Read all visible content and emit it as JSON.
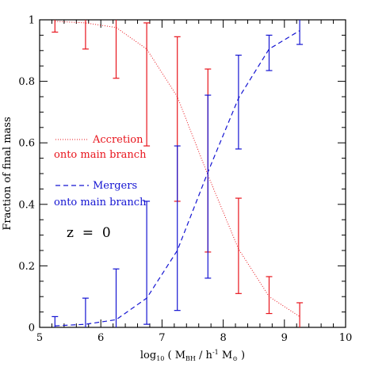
{
  "chart_data": {
    "type": "line",
    "xlabel_main": "log",
    "xlabel_sub": "10",
    "xlabel_open": " ( M",
    "xlabel_bh": "BH",
    "xlabel_mid": " / h",
    "xlabel_sup": "-1",
    "xlabel_msun": " M",
    "xlabel_sun_sym": "⊙",
    "xlabel_close": " )",
    "ylabel": "Fraction of final mass",
    "xlim": [
      5,
      10
    ],
    "ylim": [
      0,
      1
    ],
    "xticks": [
      5,
      6,
      7,
      8,
      9,
      10
    ],
    "yticks": [
      0,
      0.2,
      0.4,
      0.6,
      0.8,
      1
    ],
    "xtick_labels": [
      "5",
      "6",
      "7",
      "8",
      "9",
      "10"
    ],
    "ytick_labels": [
      "0",
      "0.2",
      "0.4",
      "0.6",
      "0.8",
      "1"
    ],
    "annotation": "z  =  0",
    "legend": [
      {
        "line1": "Accretion",
        "line2": "onto main branch",
        "color": "#e8141c",
        "style": "dotted"
      },
      {
        "line1": "Mergers",
        "line2": "onto main branch",
        "color": "#1414d2",
        "style": "dashed"
      }
    ],
    "series": [
      {
        "key": "accretion",
        "color": "#e8141c",
        "style": "dotted",
        "x": [
          5.25,
          5.75,
          6.25,
          6.75,
          7.25,
          7.75,
          8.25,
          8.75,
          9.25
        ],
        "y": [
          0.995,
          0.99,
          0.975,
          0.905,
          0.75,
          0.495,
          0.255,
          0.1,
          0.035
        ]
      },
      {
        "key": "mergers",
        "color": "#1414d2",
        "style": "dashed",
        "x": [
          5.25,
          5.75,
          6.25,
          6.75,
          7.25,
          7.75,
          8.25,
          8.75,
          9.25
        ],
        "y": [
          0.005,
          0.01,
          0.025,
          0.095,
          0.25,
          0.505,
          0.745,
          0.905,
          0.965
        ]
      }
    ],
    "errorbars": [
      {
        "series": "accretion",
        "color": "#e8141c",
        "x": 5.25,
        "low": 0.96,
        "high": 1.0
      },
      {
        "series": "accretion",
        "color": "#e8141c",
        "x": 5.75,
        "low": 0.905,
        "high": 1.0
      },
      {
        "series": "accretion",
        "color": "#e8141c",
        "x": 6.25,
        "low": 0.81,
        "high": 1.0
      },
      {
        "series": "accretion",
        "color": "#e8141c",
        "x": 6.75,
        "low": 0.59,
        "high": 0.99
      },
      {
        "series": "accretion",
        "color": "#e8141c",
        "x": 7.25,
        "low": 0.41,
        "high": 0.945
      },
      {
        "series": "accretion",
        "color": "#e8141c",
        "x": 7.75,
        "low": 0.245,
        "high": 0.84
      },
      {
        "series": "accretion",
        "color": "#e8141c",
        "x": 8.25,
        "low": 0.11,
        "high": 0.42
      },
      {
        "series": "accretion",
        "color": "#e8141c",
        "x": 8.75,
        "low": 0.045,
        "high": 0.165
      },
      {
        "series": "accretion",
        "color": "#e8141c",
        "x": 9.25,
        "low": 0.0,
        "high": 0.08
      },
      {
        "series": "mergers",
        "color": "#1414d2",
        "x": 5.25,
        "low": 0.0,
        "high": 0.035
      },
      {
        "series": "mergers",
        "color": "#1414d2",
        "x": 5.75,
        "low": 0.0,
        "high": 0.095
      },
      {
        "series": "mergers",
        "color": "#1414d2",
        "x": 6.25,
        "low": 0.0,
        "high": 0.19
      },
      {
        "series": "mergers",
        "color": "#1414d2",
        "x": 6.75,
        "low": 0.01,
        "high": 0.41
      },
      {
        "series": "mergers",
        "color": "#1414d2",
        "x": 7.25,
        "low": 0.055,
        "high": 0.59
      },
      {
        "series": "mergers",
        "color": "#1414d2",
        "x": 7.75,
        "low": 0.16,
        "high": 0.755
      },
      {
        "series": "mergers",
        "color": "#1414d2",
        "x": 8.25,
        "low": 0.58,
        "high": 0.885
      },
      {
        "series": "mergers",
        "color": "#1414d2",
        "x": 8.75,
        "low": 0.835,
        "high": 0.95
      },
      {
        "series": "mergers",
        "color": "#1414d2",
        "x": 9.25,
        "low": 0.92,
        "high": 1.0
      }
    ]
  }
}
